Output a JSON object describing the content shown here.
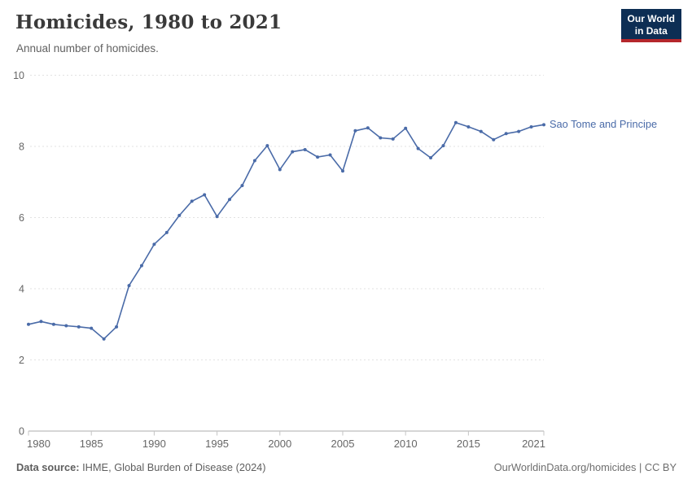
{
  "chart_data": {
    "type": "line",
    "title": "Homicides, 1980 to 2021",
    "subtitle": "Annual number of homicides.",
    "xlabel": "",
    "ylabel": "",
    "xlim": [
      1980,
      2021
    ],
    "ylim": [
      0,
      10
    ],
    "xticks": [
      1980,
      1985,
      1990,
      1995,
      2000,
      2005,
      2010,
      2015,
      2021
    ],
    "yticks": [
      0,
      2,
      4,
      6,
      8,
      10
    ],
    "grid": "horizontal-dashed",
    "legend_position": "end-of-line-label",
    "series": [
      {
        "name": "Sao Tome and Principe",
        "color": "#4a6ba8",
        "x": [
          1980,
          1981,
          1982,
          1983,
          1984,
          1985,
          1986,
          1987,
          1988,
          1989,
          1990,
          1991,
          1992,
          1993,
          1994,
          1995,
          1996,
          1997,
          1998,
          1999,
          2000,
          2001,
          2002,
          2003,
          2004,
          2005,
          2006,
          2007,
          2008,
          2009,
          2010,
          2011,
          2012,
          2013,
          2014,
          2015,
          2016,
          2017,
          2018,
          2019,
          2020,
          2021
        ],
        "values": [
          3.0,
          3.08,
          3.0,
          2.96,
          2.93,
          2.89,
          2.59,
          2.93,
          4.09,
          4.65,
          5.25,
          5.58,
          6.06,
          6.46,
          6.64,
          6.03,
          6.51,
          6.9,
          7.6,
          8.02,
          7.35,
          7.85,
          7.91,
          7.7,
          7.76,
          7.31,
          8.44,
          8.52,
          8.24,
          8.21,
          8.51,
          7.94,
          7.68,
          8.02,
          8.67,
          8.55,
          8.42,
          8.19,
          8.36,
          8.42,
          8.55,
          8.61
        ]
      }
    ]
  },
  "header": {
    "logo": {
      "line1": "Our World",
      "line2": "in Data",
      "bg_color": "#0d2e54",
      "accent_color": "#b5272c"
    }
  },
  "footer": {
    "source_label": "Data source:",
    "source_text": " IHME, Global Burden of Disease (2024)",
    "credit": "OurWorldinData.org/homicides | CC BY"
  },
  "colors": {
    "grid": "#e2e2e2",
    "axis": "#adadad",
    "tick": "#c4c4c4",
    "tick_text": "#666666",
    "series": "#4a6ba8"
  }
}
